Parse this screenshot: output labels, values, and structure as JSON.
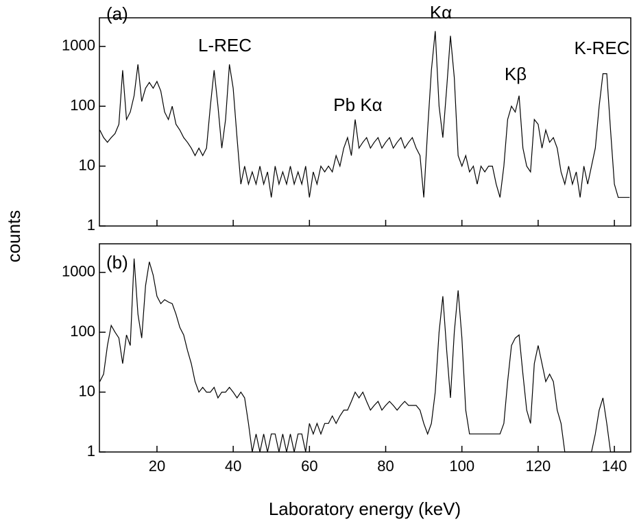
{
  "chart_data": [
    {
      "type": "line",
      "ylabel": "counts",
      "annotations": [
        "(a)",
        "L-REC",
        "Pb Kα",
        "Kα",
        "Kβ",
        "K-REC"
      ],
      "xlim": [
        4.9,
        144.3
      ],
      "xticks": [
        20,
        40,
        60,
        80,
        100,
        120,
        140
      ],
      "ylim": [
        1,
        3000
      ],
      "yticks": [
        1,
        10,
        100,
        1000
      ],
      "log_y": true,
      "x": [
        5,
        6,
        7,
        8,
        9,
        10,
        11,
        12,
        13,
        14,
        15,
        16,
        17,
        18,
        19,
        20,
        21,
        22,
        23,
        24,
        25,
        26,
        27,
        28,
        29,
        30,
        31,
        32,
        33,
        34,
        35,
        36,
        37,
        38,
        39,
        40,
        41,
        42,
        43,
        44,
        45,
        46,
        47,
        48,
        49,
        50,
        51,
        52,
        53,
        54,
        55,
        56,
        57,
        58,
        59,
        60,
        61,
        62,
        63,
        64,
        65,
        66,
        67,
        68,
        69,
        70,
        71,
        72,
        73,
        74,
        75,
        76,
        77,
        78,
        79,
        80,
        81,
        82,
        83,
        84,
        85,
        86,
        87,
        88,
        89,
        90,
        91,
        92,
        93,
        94,
        95,
        96,
        97,
        98,
        99,
        100,
        101,
        102,
        103,
        104,
        105,
        106,
        107,
        108,
        109,
        110,
        111,
        112,
        113,
        114,
        115,
        116,
        117,
        118,
        119,
        120,
        121,
        122,
        123,
        124,
        125,
        126,
        127,
        128,
        129,
        130,
        131,
        132,
        133,
        134,
        135,
        136,
        137,
        138,
        139,
        140,
        141,
        142,
        143,
        144
      ],
      "series": [
        {
          "color": "#000000",
          "values": [
            40,
            30,
            25,
            30,
            35,
            50,
            400,
            60,
            80,
            150,
            500,
            120,
            200,
            250,
            200,
            260,
            180,
            80,
            60,
            100,
            50,
            40,
            30,
            25,
            20,
            15,
            20,
            15,
            20,
            100,
            400,
            100,
            20,
            60,
            500,
            200,
            30,
            5,
            10,
            5,
            8,
            5,
            10,
            5,
            8,
            3,
            10,
            5,
            8,
            5,
            10,
            5,
            8,
            5,
            10,
            3,
            8,
            5,
            10,
            8,
            10,
            8,
            15,
            10,
            20,
            30,
            15,
            60,
            20,
            25,
            30,
            20,
            25,
            30,
            20,
            25,
            30,
            20,
            25,
            30,
            20,
            25,
            30,
            20,
            15,
            3,
            40,
            400,
            1800,
            100,
            30,
            200,
            1500,
            300,
            15,
            10,
            15,
            8,
            10,
            5,
            10,
            8,
            10,
            10,
            5,
            3,
            10,
            60,
            100,
            80,
            150,
            20,
            10,
            8,
            60,
            50,
            20,
            40,
            25,
            30,
            20,
            8,
            5,
            10,
            5,
            8,
            3,
            10,
            5,
            10,
            20,
            100,
            350,
            350,
            40,
            5,
            3,
            3,
            3,
            3
          ]
        }
      ]
    },
    {
      "type": "line",
      "xlabel": "Laboratory energy (keV)",
      "annotations": [
        "(b)"
      ],
      "xlim": [
        4.9,
        144.3
      ],
      "xticks": [
        20,
        40,
        60,
        80,
        100,
        120,
        140
      ],
      "ylim": [
        1,
        3000
      ],
      "yticks": [
        1,
        10,
        100,
        1000
      ],
      "log_y": true,
      "x": [
        5,
        6,
        7,
        8,
        9,
        10,
        11,
        12,
        13,
        14,
        15,
        16,
        17,
        18,
        19,
        20,
        21,
        22,
        23,
        24,
        25,
        26,
        27,
        28,
        29,
        30,
        31,
        32,
        33,
        34,
        35,
        36,
        37,
        38,
        39,
        40,
        41,
        42,
        43,
        44,
        45,
        46,
        47,
        48,
        49,
        50,
        51,
        52,
        53,
        54,
        55,
        56,
        57,
        58,
        59,
        60,
        61,
        62,
        63,
        64,
        65,
        66,
        67,
        68,
        69,
        70,
        71,
        72,
        73,
        74,
        75,
        76,
        77,
        78,
        79,
        80,
        81,
        82,
        83,
        84,
        85,
        86,
        87,
        88,
        89,
        90,
        91,
        92,
        93,
        94,
        95,
        96,
        97,
        98,
        99,
        100,
        101,
        102,
        103,
        104,
        105,
        106,
        107,
        108,
        109,
        110,
        111,
        112,
        113,
        114,
        115,
        116,
        117,
        118,
        119,
        120,
        121,
        122,
        123,
        124,
        125,
        126,
        127,
        128,
        129,
        130,
        131,
        132,
        133,
        134,
        135,
        136,
        137,
        138,
        139,
        140,
        141,
        142,
        143,
        144
      ],
      "series": [
        {
          "color": "#000000",
          "values": [
            15,
            20,
            60,
            130,
            100,
            80,
            30,
            90,
            60,
            1700,
            200,
            80,
            600,
            1500,
            900,
            400,
            300,
            350,
            320,
            300,
            200,
            120,
            90,
            50,
            30,
            15,
            10,
            12,
            10,
            10,
            12,
            8,
            10,
            10,
            12,
            10,
            8,
            10,
            8,
            3,
            1,
            2,
            1,
            2,
            1,
            2,
            2,
            1,
            2,
            1,
            2,
            1,
            2,
            2,
            1,
            3,
            2,
            3,
            2,
            3,
            3,
            4,
            3,
            4,
            5,
            5,
            7,
            10,
            8,
            10,
            7,
            5,
            6,
            7,
            5,
            6,
            7,
            6,
            5,
            6,
            7,
            6,
            6,
            6,
            5,
            3,
            2,
            3,
            10,
            100,
            400,
            50,
            8,
            100,
            500,
            80,
            5,
            2,
            2,
            2,
            2,
            2,
            2,
            2,
            2,
            2,
            3,
            15,
            60,
            80,
            90,
            20,
            5,
            3,
            30,
            60,
            30,
            15,
            20,
            15,
            5,
            3,
            1,
            1,
            1,
            1,
            1,
            1,
            1,
            1,
            2,
            5,
            8,
            3,
            1,
            1,
            1,
            1,
            1,
            1
          ]
        }
      ]
    }
  ]
}
